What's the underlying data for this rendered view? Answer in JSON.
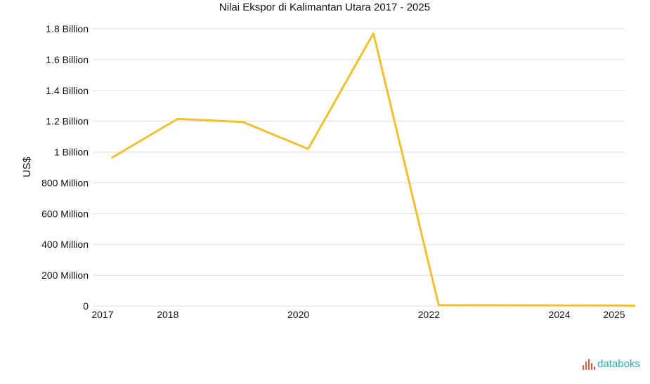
{
  "chart_data": {
    "type": "line",
    "title": "Nilai Ekspor di Kalimantan Utara 2017 - 2025",
    "ylabel": "US$",
    "xlabel": "",
    "x": [
      2017,
      2018,
      2019,
      2020,
      2021,
      2022,
      2023,
      2024,
      2025
    ],
    "x_tick_labels": [
      "2017",
      "2018",
      "2020",
      "2022",
      "2024",
      "2025"
    ],
    "x_tick_values": [
      2017,
      2018,
      2020,
      2022,
      2024,
      2025
    ],
    "ylim": [
      0,
      1800000000
    ],
    "y_ticks": [
      0,
      200000000,
      400000000,
      600000000,
      800000000,
      1000000000,
      1200000000,
      1400000000,
      1600000000,
      1800000000
    ],
    "y_tick_labels": [
      "0",
      "200 Million",
      "400 Million",
      "600 Million",
      "800 Million",
      "1 Billion",
      "1.2 Billion",
      "1.4 Billion",
      "1.6 Billion",
      "1.8 Billion"
    ],
    "grid": true,
    "series": [
      {
        "color": "#f0c02e",
        "values": [
          965000000,
          1215000000,
          1195000000,
          1020000000,
          1770000000,
          6000000,
          5000000,
          4000000,
          3000000
        ]
      }
    ]
  },
  "brand": {
    "name": "databoks",
    "icon": "databoks-bars-icon",
    "icon_color": "#e8563a",
    "text_color": "#2fa9a8"
  }
}
